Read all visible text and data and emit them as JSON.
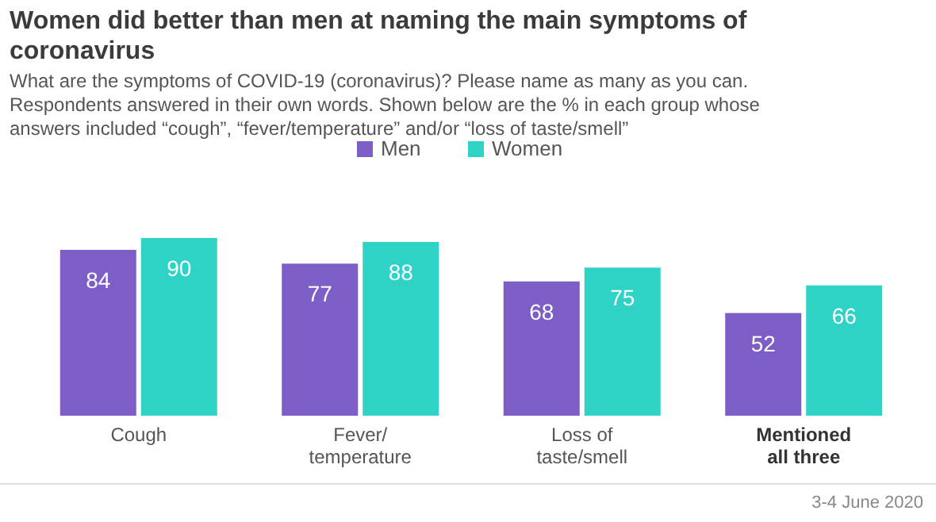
{
  "chart_data": {
    "type": "bar",
    "title": "Women did better than men at naming the main symptoms of\ncoronavirus",
    "subtitle": "What are the symptoms of COVID-19 (coronavirus)? Please name as many as you can.\nRespondents answered in their own words. Shown below are the % in each group whose\nanswers included “cough”, “fever/temperature” and/or “loss of taste/smell”",
    "categories": [
      "Cough",
      "Fever/\ntemperature",
      "Loss of\ntaste/smell",
      "Mentioned\nall three"
    ],
    "series": [
      {
        "name": "Men",
        "color": "#7d5ec6",
        "values": [
          84,
          77,
          68,
          52
        ]
      },
      {
        "name": "Women",
        "color": "#2fd3c6",
        "values": [
          90,
          88,
          75,
          66
        ]
      }
    ],
    "data_labels": true,
    "legend": "top",
    "annotations": [
      "3-4 June 2020"
    ]
  }
}
